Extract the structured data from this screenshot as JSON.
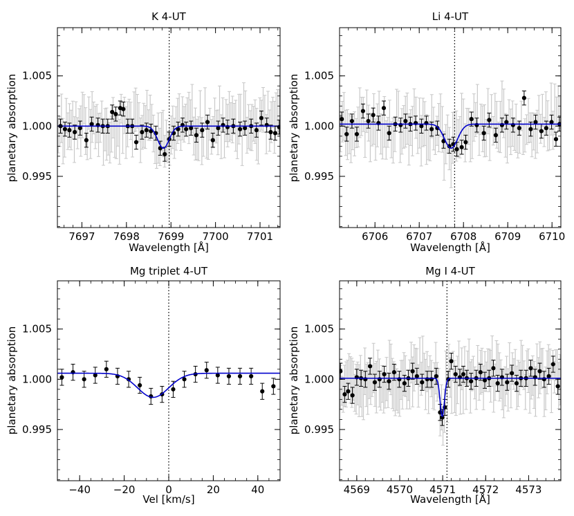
{
  "figure": {
    "background": "#ffffff"
  },
  "colors": {
    "model": "#0000cc",
    "points": "#000000",
    "raw_errorbars": "#c8c8c8",
    "errorbars": "#000000",
    "marker_line": "#000000"
  },
  "chart_data": [
    {
      "id": "k",
      "type": "scatter",
      "title": "K 4-UT",
      "xlabel": "Wavelength [Å]",
      "ylabel": "planetary absorption",
      "xlim": [
        7696.45,
        7701.45
      ],
      "ylim": [
        0.9899,
        1.0098
      ],
      "xticks": [
        7697,
        7698,
        7699,
        7700,
        7701
      ],
      "yticks": [
        0.995,
        1.0,
        1.005
      ],
      "ytick_labels": [
        "0.995",
        "1.000",
        "1.005"
      ],
      "xminor": 0.2,
      "yminor": 0.001,
      "line_marker": 7698.96,
      "raw_errorbars": true,
      "raw_seed": 11,
      "model": {
        "type": "gauss",
        "x0": 7698.83,
        "baseline": 1.0,
        "depth": 0.0022,
        "sigma": 0.13
      },
      "series": [
        {
          "name": "binned",
          "err": 0.0007,
          "x": [
            7696.52,
            7696.62,
            7696.72,
            7696.84,
            7696.96,
            7697.1,
            7697.22,
            7697.36,
            7697.47,
            7697.58,
            7697.68,
            7697.76,
            7697.86,
            7697.93,
            7698.03,
            7698.13,
            7698.22,
            7698.35,
            7698.45,
            7698.55,
            7698.66,
            7698.76,
            7698.86,
            7698.96,
            7699.06,
            7699.16,
            7699.26,
            7699.34,
            7699.45,
            7699.57,
            7699.7,
            7699.82,
            7699.94,
            7700.06,
            7700.17,
            7700.27,
            7700.4,
            7700.55,
            7700.66,
            7700.8,
            7700.92,
            7701.03,
            7701.15,
            7701.24,
            7701.34,
            7701.43
          ],
          "y": [
            1.0,
            0.9997,
            0.9996,
            0.9994,
            0.9998,
            0.9986,
            1.0002,
            1.0001,
            1.0,
            1.0,
            1.0014,
            1.0012,
            1.0018,
            1.0017,
            1.0,
            1.0,
            0.9984,
            0.9994,
            0.9996,
            0.9995,
            0.9993,
            0.9978,
            0.9972,
            0.9987,
            0.9993,
            0.9997,
            1.0001,
            0.9997,
            0.9998,
            0.9991,
            0.9996,
            1.0004,
            0.9986,
            0.9998,
            1.0001,
            0.9999,
            1.0,
            0.9997,
            0.9998,
            1.0,
            0.9996,
            1.0008,
            1.0001,
            0.9994,
            0.9993,
            0.9999
          ]
        }
      ]
    },
    {
      "id": "li",
      "type": "scatter",
      "title": "Li 4-UT",
      "xlabel": "Wavelength [Å]",
      "ylabel": "planetary absorption",
      "xlim": [
        6705.2,
        6710.2
      ],
      "ylim": [
        0.9899,
        1.0098
      ],
      "xticks": [
        6706,
        6707,
        6708,
        6709,
        6710
      ],
      "yticks": [
        0.995,
        1.0,
        1.005
      ],
      "ytick_labels": [
        "0.995",
        "1.000",
        "1.005"
      ],
      "xminor": 0.2,
      "yminor": 0.001,
      "line_marker": 6707.8,
      "raw_errorbars": true,
      "raw_seed": 23,
      "model": {
        "type": "gauss",
        "x0": 6707.72,
        "baseline": 1.0002,
        "depth": 0.0024,
        "sigma": 0.15
      },
      "series": [
        {
          "name": "binned",
          "err": 0.0007,
          "x": [
            6705.25,
            6705.36,
            6705.48,
            6705.59,
            6705.73,
            6705.85,
            6705.96,
            6706.08,
            6706.2,
            6706.32,
            6706.46,
            6706.58,
            6706.69,
            6706.8,
            6706.92,
            6707.05,
            6707.16,
            6707.28,
            6707.41,
            6707.55,
            6707.68,
            6707.77,
            6707.85,
            6707.96,
            6708.05,
            6708.18,
            6708.3,
            6708.46,
            6708.58,
            6708.73,
            6708.87,
            6708.97,
            6709.12,
            6709.26,
            6709.37,
            6709.52,
            6709.63,
            6709.76,
            6709.87,
            6709.99,
            6710.09,
            6710.17
          ],
          "y": [
            1.0007,
            0.9992,
            1.0005,
            0.9992,
            1.0015,
            1.0005,
            1.0011,
            1.0003,
            1.0018,
            0.9993,
            1.0002,
            1.0001,
            1.0005,
            1.0002,
            1.0003,
            1.0,
            1.0003,
            0.9997,
            0.9998,
            0.9985,
            0.998,
            0.9982,
            0.9977,
            0.9979,
            0.9984,
            1.0007,
            1.0001,
            0.9993,
            1.0006,
            0.9991,
            1.0001,
            1.0004,
            1.0001,
            0.9998,
            1.0028,
            0.9997,
            1.0004,
            0.9995,
            0.9998,
            1.0004,
            0.9987,
            1.0002
          ]
        }
      ]
    },
    {
      "id": "mgtrip",
      "type": "scatter",
      "title": "Mg triplet 4-UT",
      "xlabel": "Vel [km/s]",
      "ylabel": "planetary absorption",
      "xlim": [
        -50,
        50
      ],
      "ylim": [
        0.9899,
        1.0098
      ],
      "xticks": [
        -40,
        -20,
        0,
        20,
        40
      ],
      "yticks": [
        0.995,
        1.0,
        1.005
      ],
      "ytick_labels": [
        "0.995",
        "1.000",
        "1.005"
      ],
      "xminor": 5,
      "yminor": 0.001,
      "line_marker": 0,
      "raw_errorbars": false,
      "raw_seed": 0,
      "model": {
        "type": "gauss",
        "x0": -7,
        "baseline": 1.0006,
        "depth": 0.0024,
        "sigma": 7
      },
      "series": [
        {
          "name": "binned",
          "err": 0.0008,
          "x": [
            -48,
            -43,
            -38,
            -33,
            -28,
            -23,
            -18,
            -13,
            -8,
            -3,
            2,
            7,
            12,
            17,
            22,
            27,
            32,
            37,
            42,
            47
          ],
          "y": [
            1.0002,
            1.0007,
            1.0,
            1.0004,
            1.001,
            1.0003,
            1.0,
            0.9994,
            0.9983,
            0.9985,
            0.999,
            1.0,
            1.0005,
            1.0009,
            1.0004,
            1.0003,
            1.0003,
            1.0003,
            0.9988,
            0.9993
          ]
        }
      ]
    },
    {
      "id": "mg1",
      "type": "scatter",
      "title": "Mg I 4-UT",
      "xlabel": "Wavelength [Å]",
      "ylabel": "planetary absorption",
      "xlim": [
        4568.6,
        4573.75
      ],
      "ylim": [
        0.9899,
        1.0098
      ],
      "xticks": [
        4569,
        4570,
        4571,
        4572,
        4573
      ],
      "yticks": [
        0.995,
        1.0,
        1.005
      ],
      "ytick_labels": [
        "0.995",
        "1.000",
        "1.005"
      ],
      "xminor": 0.2,
      "yminor": 0.001,
      "line_marker": 4571.1,
      "raw_errorbars": true,
      "raw_seed": 37,
      "model": {
        "type": "gauss",
        "x0": 4570.99,
        "baseline": 1.0001,
        "depth": 0.0038,
        "sigma": 0.05
      },
      "series": [
        {
          "name": "binned",
          "err": 0.0008,
          "x": [
            4568.62,
            4568.72,
            4568.8,
            4568.9,
            4569.0,
            4569.1,
            4569.2,
            4569.31,
            4569.42,
            4569.53,
            4569.64,
            4569.75,
            4569.87,
            4569.99,
            4570.11,
            4570.2,
            4570.3,
            4570.4,
            4570.52,
            4570.64,
            4570.74,
            4570.85,
            4570.94,
            4570.99,
            4571.05,
            4571.13,
            4571.2,
            4571.3,
            4571.4,
            4571.48,
            4571.56,
            4571.66,
            4571.78,
            4571.88,
            4571.98,
            4572.08,
            4572.18,
            4572.28,
            4572.38,
            4572.5,
            4572.61,
            4572.72,
            4572.82,
            4572.94,
            4573.05,
            4573.15,
            4573.26,
            4573.36,
            4573.47,
            4573.57,
            4573.68
          ],
          "y": [
            1.0008,
            0.9985,
            0.9988,
            0.9984,
            1.0002,
            1.0001,
            1.0,
            1.0013,
            0.9997,
            1.0,
            1.0005,
            0.9998,
            1.0007,
            1.0,
            0.9996,
            1.0001,
            1.0008,
            1.0003,
            0.9997,
            1.0,
            1.0,
            1.0003,
            0.9967,
            0.9962,
            0.9972,
            1.0,
            1.0018,
            1.0005,
            1.0002,
            1.0005,
            1.0001,
            0.9998,
            1.0001,
            1.0007,
            0.9999,
            1.0001,
            1.0011,
            0.9996,
            1.0002,
            0.9997,
            1.0006,
            0.9996,
            1.0001,
            1.0001,
            1.0011,
            1.0002,
            1.0008,
            1.0,
            1.0003,
            1.0015,
            0.9993
          ]
        }
      ]
    }
  ]
}
